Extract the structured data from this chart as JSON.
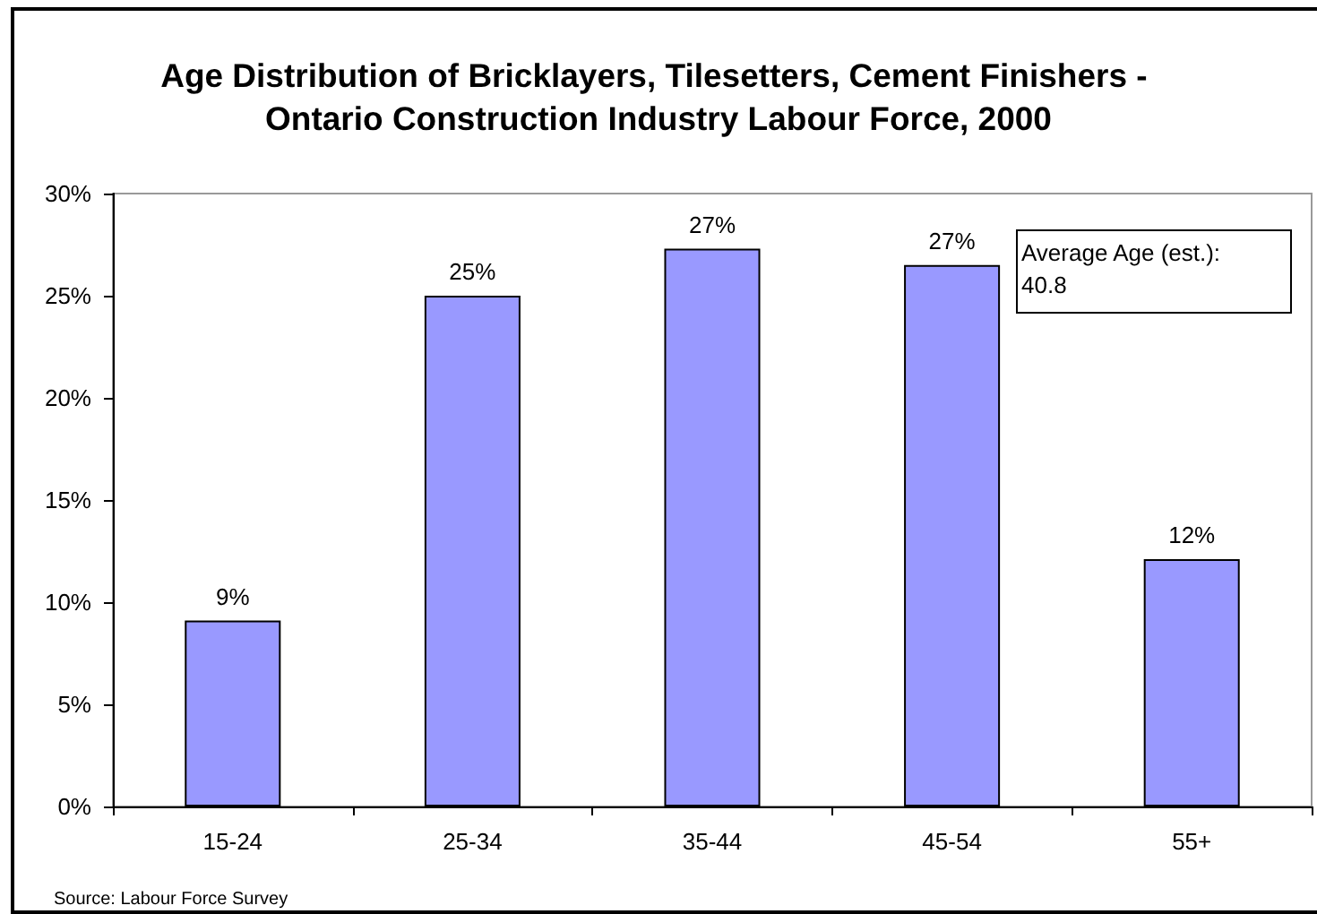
{
  "chart_data": {
    "type": "bar",
    "title": "Age Distribution of Bricklayers, Tilesetters, Cement Finishers - Ontario Construction Industry Labour Force, 2000",
    "categories": [
      "15-24",
      "25-34",
      "35-44",
      "45-54",
      "55+"
    ],
    "values": [
      9.1,
      25,
      27.3,
      26.5,
      12.1
    ],
    "value_labels": [
      "9%",
      "25%",
      "27%",
      "27%",
      "12%"
    ],
    "color": "#9999ff",
    "ylim": [
      0,
      30
    ],
    "yticks": [
      {
        "value": 0,
        "label": "0%"
      },
      {
        "value": 5,
        "label": "5%"
      },
      {
        "value": 10,
        "label": "10%"
      },
      {
        "value": 15,
        "label": "15%"
      },
      {
        "value": 20,
        "label": "20%"
      },
      {
        "value": 25,
        "label": "25%"
      },
      {
        "value": 30,
        "label": "30%"
      }
    ],
    "annotations": [
      "Average Age (est.): 40.8",
      "Source: Labour Force Survey"
    ]
  }
}
